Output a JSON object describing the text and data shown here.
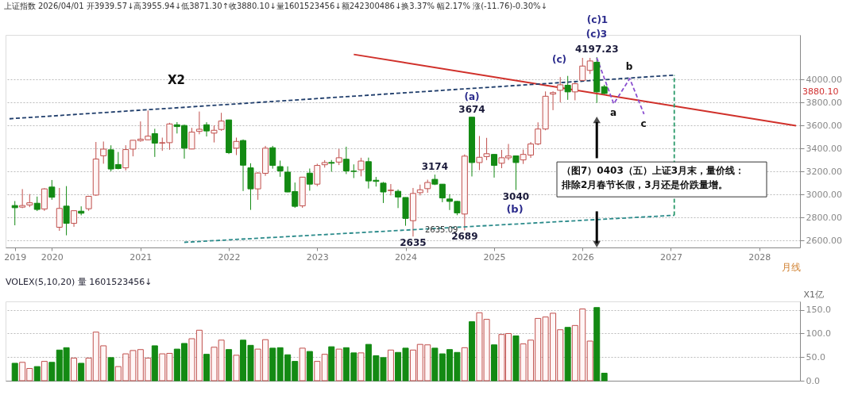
{
  "chart_data": [
    {
      "type": "candlestick",
      "title": "上证指数 2026/04/01 开3939.57↓高3955.94↓低3871.30↑收3880.10↓量1601523456↓额242300486↓换3.37% 幅2.17% 涨(-11.76)-0.30%↓",
      "xlabel": "月线",
      "x": [
        "2019-08",
        "2019-09",
        "2019-10",
        "2019-11",
        "2019-12",
        "2020-01",
        "2020-02",
        "2020-03",
        "2020-04",
        "2020-05",
        "2020-06",
        "2020-07",
        "2020-08",
        "2020-09",
        "2020-10",
        "2020-11",
        "2020-12",
        "2021-01",
        "2021-02",
        "2021-03",
        "2021-04",
        "2021-05",
        "2021-06",
        "2021-07",
        "2021-08",
        "2021-09",
        "2021-10",
        "2021-11",
        "2021-12",
        "2022-01",
        "2022-02",
        "2022-03",
        "2022-04",
        "2022-05",
        "2022-06",
        "2022-07",
        "2022-08",
        "2022-09",
        "2022-10",
        "2022-11",
        "2022-12",
        "2023-01",
        "2023-02",
        "2023-03",
        "2023-04",
        "2023-05",
        "2023-06",
        "2023-07",
        "2023-08",
        "2023-09",
        "2023-10",
        "2023-11",
        "2023-12",
        "2024-01",
        "2024-02",
        "2024-03",
        "2024-04",
        "2024-05",
        "2024-06",
        "2024-07",
        "2024-08",
        "2024-09",
        "2024-10",
        "2024-11",
        "2024-12",
        "2025-01",
        "2025-02",
        "2025-03",
        "2025-04",
        "2025-05",
        "2025-06",
        "2025-07",
        "2025-08",
        "2025-09",
        "2025-10",
        "2025-11",
        "2025-12",
        "2026-01",
        "2026-02",
        "2026-03",
        "2026-04"
      ],
      "ohlc": [
        [
          2905,
          2944,
          2733,
          2886
        ],
        [
          2891,
          3048,
          2882,
          2905
        ],
        [
          2910,
          3005,
          2891,
          2929
        ],
        [
          2925,
          2983,
          2857,
          2871
        ],
        [
          2875,
          3056,
          2858,
          3050
        ],
        [
          3066,
          3127,
          2955,
          2977
        ],
        [
          2716,
          3058,
          2685,
          2880
        ],
        [
          2900,
          3074,
          2646,
          2750
        ],
        [
          2750,
          2862,
          2720,
          2860
        ],
        [
          2856,
          2898,
          2820,
          2838
        ],
        [
          2877,
          2990,
          2860,
          2985
        ],
        [
          2996,
          3458,
          2990,
          3310
        ],
        [
          3338,
          3462,
          3269,
          3396
        ],
        [
          3390,
          3429,
          3202,
          3223
        ],
        [
          3262,
          3371,
          3220,
          3227
        ],
        [
          3233,
          3430,
          3210,
          3392
        ],
        [
          3396,
          3474,
          3333,
          3473
        ],
        [
          3470,
          3637,
          3460,
          3483
        ],
        [
          3477,
          3732,
          3474,
          3509
        ],
        [
          3531,
          3573,
          3328,
          3448
        ],
        [
          3448,
          3496,
          3381,
          3452
        ],
        [
          3452,
          3625,
          3390,
          3615
        ],
        [
          3608,
          3631,
          3532,
          3592
        ],
        [
          3602,
          3609,
          3313,
          3404
        ],
        [
          3397,
          3581,
          3395,
          3544
        ],
        [
          3550,
          3723,
          3525,
          3569
        ],
        [
          3608,
          3630,
          3506,
          3554
        ],
        [
          3535,
          3602,
          3454,
          3560
        ],
        [
          3567,
          3712,
          3555,
          3640
        ],
        [
          3650,
          3652,
          3353,
          3365
        ],
        [
          3404,
          3496,
          3344,
          3463
        ],
        [
          3471,
          3480,
          3031,
          3256
        ],
        [
          3233,
          3273,
          2867,
          3050
        ],
        [
          3050,
          3194,
          2955,
          3188
        ],
        [
          3185,
          3424,
          3163,
          3404
        ],
        [
          3408,
          3424,
          3226,
          3254
        ],
        [
          3244,
          3296,
          3155,
          3206
        ],
        [
          3196,
          3246,
          3021,
          3023
        ],
        [
          3027,
          3105,
          2885,
          2898
        ],
        [
          2902,
          3154,
          2885,
          3152
        ],
        [
          3187,
          3227,
          3034,
          3091
        ],
        [
          3091,
          3269,
          3073,
          3254
        ],
        [
          3260,
          3300,
          3235,
          3279
        ],
        [
          3280,
          3301,
          3199,
          3273
        ],
        [
          3283,
          3398,
          3257,
          3321
        ],
        [
          3308,
          3417,
          3179,
          3206
        ],
        [
          3205,
          3263,
          3144,
          3202
        ],
        [
          3216,
          3321,
          3159,
          3292
        ],
        [
          3287,
          3322,
          3053,
          3119
        ],
        [
          3125,
          3154,
          3070,
          3115
        ],
        [
          3100,
          3110,
          2927,
          3023
        ],
        [
          3035,
          3092,
          2993,
          3039
        ],
        [
          3029,
          3045,
          2883,
          2979
        ],
        [
          2975,
          2976,
          2729,
          2793
        ],
        [
          2773,
          3058,
          2635.09,
          3010
        ],
        [
          3017,
          3087,
          2993,
          3042
        ],
        [
          3052,
          3130,
          3016,
          3106
        ],
        [
          3133,
          3174,
          3083,
          3091
        ],
        [
          3091,
          3092,
          2934,
          2971
        ],
        [
          2962,
          3004,
          2866,
          2941
        ],
        [
          2941,
          2945,
          2821,
          2841
        ],
        [
          2831,
          3350,
          2689,
          3335
        ],
        [
          3674,
          3674,
          3158,
          3279
        ],
        [
          3279,
          3510,
          3213,
          3325
        ],
        [
          3331,
          3494,
          3300,
          3356
        ],
        [
          3350,
          3352,
          3148,
          3254
        ],
        [
          3273,
          3389,
          3230,
          3321
        ],
        [
          3320,
          3441,
          3300,
          3336
        ],
        [
          3337,
          3340,
          3040,
          3279
        ],
        [
          3302,
          3392,
          3267,
          3350
        ],
        [
          3344,
          3458,
          3320,
          3441
        ],
        [
          3441,
          3629,
          3430,
          3571
        ],
        [
          3571,
          3898,
          3560,
          3856
        ],
        [
          3875,
          3899,
          3735,
          3888
        ],
        [
          3908,
          4023,
          3802,
          3956
        ],
        [
          3952,
          4033,
          3825,
          3894
        ],
        [
          3894,
          3990,
          3821,
          3965
        ],
        [
          3994,
          4190,
          3990,
          4119
        ],
        [
          4081,
          4190,
          4050,
          4163
        ],
        [
          4152,
          4197.23,
          3798,
          3894
        ],
        [
          3939.57,
          3955.94,
          3871.3,
          3880.1
        ]
      ],
      "colors": [
        "#138a13",
        "#c0504d",
        "#c0504d",
        "#138a13",
        "#c0504d",
        "#138a13",
        "#c0504d",
        "#138a13",
        "#c0504d",
        "#138a13",
        "#c0504d",
        "#c0504d",
        "#c0504d",
        "#138a13",
        "#138a13",
        "#c0504d",
        "#c0504d",
        "#c0504d",
        "#c0504d",
        "#138a13",
        "#c0504d",
        "#c0504d",
        "#138a13",
        "#138a13",
        "#c0504d",
        "#c0504d",
        "#138a13",
        "#c0504d",
        "#c0504d",
        "#138a13",
        "#c0504d",
        "#138a13",
        "#138a13",
        "#c0504d",
        "#c0504d",
        "#138a13",
        "#138a13",
        "#138a13",
        "#138a13",
        "#c0504d",
        "#138a13",
        "#c0504d",
        "#c0504d",
        "#138a13",
        "#c0504d",
        "#138a13",
        "#138a13",
        "#c0504d",
        "#138a13",
        "#138a13",
        "#138a13",
        "#c0504d",
        "#138a13",
        "#138a13",
        "#c0504d",
        "#c0504d",
        "#c0504d",
        "#138a13",
        "#138a13",
        "#138a13",
        "#138a13",
        "#c0504d",
        "#138a13",
        "#c0504d",
        "#c0504d",
        "#138a13",
        "#c0504d",
        "#c0504d",
        "#138a13",
        "#c0504d",
        "#c0504d",
        "#c0504d",
        "#c0504d",
        "#c0504d",
        "#c0504d",
        "#138a13",
        "#c0504d",
        "#c0504d",
        "#c0504d",
        "#138a13",
        "#138a13"
      ],
      "series": [
        {
          "type": "line",
          "color": "#d0302a",
          "line_style": "solid",
          "x": [
            "2023-06",
            "2028-06"
          ],
          "values": [
            4220,
            3600
          ]
        },
        {
          "type": "line",
          "color": "#1f3d6b",
          "line_style": "dashed",
          "x": [
            "2019-07-10",
            "2027-01-15"
          ],
          "values": [
            3660,
            4040
          ]
        },
        {
          "type": "line",
          "color": "#2a8a8a",
          "line_style": "dashed",
          "x": [
            "2021-07",
            "2027-01-15"
          ],
          "values": [
            2585,
            2820
          ]
        },
        {
          "type": "line",
          "color": "#2a9a6a",
          "line_style": "dashed",
          "x": [
            "2027-01-15",
            "2027-01-15"
          ],
          "values": [
            2820,
            4040
          ]
        },
        {
          "type": "line",
          "color": "#8a4fd0",
          "line_style": "dashed",
          "x": [
            "2026-03",
            "2026-05-10",
            "2026-07-15",
            "2026-09-12"
          ],
          "values": [
            4190,
            3790,
            4010,
            3700
          ]
        }
      ],
      "xlim": [
        "2019-07-10",
        "2028-06"
      ],
      "xticks": [
        {
          "value": "2019-08",
          "label": "2019"
        },
        {
          "value": "2020-01",
          "label": "2020"
        },
        {
          "value": "2021-01",
          "label": "2021"
        },
        {
          "value": "2022-01",
          "label": "2022"
        },
        {
          "value": "2023-01",
          "label": "2023"
        },
        {
          "value": "2024-01",
          "label": "2024"
        },
        {
          "value": "2025-01",
          "label": "2025"
        },
        {
          "value": "2026-01",
          "label": "2026"
        },
        {
          "value": "2027-01",
          "label": "2027"
        },
        {
          "value": "2028-01",
          "label": "2028"
        }
      ],
      "ylim": [
        2540,
        4390
      ],
      "yticks": [
        {
          "value": 2600,
          "label": "2600.00"
        },
        {
          "value": 2800,
          "label": "2800.00"
        },
        {
          "value": 3000,
          "label": "3000.00"
        },
        {
          "value": 3200,
          "label": "3200.00"
        },
        {
          "value": 3400,
          "label": "3400.00"
        },
        {
          "value": 3600,
          "label": "3600.00"
        },
        {
          "value": 3800,
          "label": "3800.00"
        },
        {
          "value": 4000,
          "label": "4000.00"
        }
      ],
      "grid": "y",
      "annotations": [
        "X2",
        "（图7）0403（五）上证3月末，量价线：",
        "排除2月春节长假，3月还是价跌量增。",
        "(a)",
        "2635.09",
        "(b)",
        "(c)",
        "(c)1",
        "(c)3",
        "a",
        "b",
        "c",
        "3880.10",
        {
          "text": "3674",
          "x": "2024-10",
          "y": 3674
        },
        {
          "text": "3174",
          "x": "2024-05",
          "y": 3174
        },
        {
          "text": "2635",
          "x": "2024-02",
          "y": 2635.09
        },
        {
          "text": "2689",
          "x": "2024-09",
          "y": 2689
        },
        {
          "text": "3040",
          "x": "2025-04",
          "y": 3040
        },
        {
          "text": "4197.23",
          "x": "2026-03",
          "y": 4197.23
        }
      ]
    },
    {
      "type": "bar",
      "title": "VOLEX(5,10,20)  量 1601523456↓",
      "ylabel": "X1亿",
      "tick_labels": "y",
      "grid": "y",
      "x": [
        "2019-08",
        "2019-09",
        "2019-10",
        "2019-11",
        "2019-12",
        "2020-01",
        "2020-02",
        "2020-03",
        "2020-04",
        "2020-05",
        "2020-06",
        "2020-07",
        "2020-08",
        "2020-09",
        "2020-10",
        "2020-11",
        "2020-12",
        "2021-01",
        "2021-02",
        "2021-03",
        "2021-04",
        "2021-05",
        "2021-06",
        "2021-07",
        "2021-08",
        "2021-09",
        "2021-10",
        "2021-11",
        "2021-12",
        "2022-01",
        "2022-02",
        "2022-03",
        "2022-04",
        "2022-05",
        "2022-06",
        "2022-07",
        "2022-08",
        "2022-09",
        "2022-10",
        "2022-11",
        "2022-12",
        "2023-01",
        "2023-02",
        "2023-03",
        "2023-04",
        "2023-05",
        "2023-06",
        "2023-07",
        "2023-08",
        "2023-09",
        "2023-10",
        "2023-11",
        "2023-12",
        "2024-01",
        "2024-02",
        "2024-03",
        "2024-04",
        "2024-05",
        "2024-06",
        "2024-07",
        "2024-08",
        "2024-09",
        "2024-10",
        "2024-11",
        "2024-12",
        "2025-01",
        "2025-02",
        "2025-03",
        "2025-04",
        "2025-05",
        "2025-06",
        "2025-07",
        "2025-08",
        "2025-09",
        "2025-10",
        "2025-11",
        "2025-12",
        "2026-01",
        "2026-02",
        "2026-03",
        "2026-04"
      ],
      "series": [
        {
          "color": "#c0504d",
          "values": [
            null,
            39,
            26,
            null,
            41,
            null,
            null,
            null,
            48,
            null,
            48,
            103,
            74,
            null,
            30,
            57,
            64,
            66,
            48,
            null,
            57,
            58,
            null,
            null,
            89,
            107,
            null,
            71,
            86,
            null,
            54,
            null,
            null,
            67,
            87,
            null,
            null,
            null,
            null,
            69,
            null,
            41,
            56,
            null,
            67,
            null,
            null,
            59,
            null,
            null,
            null,
            65,
            null,
            null,
            65,
            77,
            76,
            null,
            null,
            null,
            null,
            70,
            null,
            144,
            130,
            null,
            98,
            100,
            null,
            78,
            86,
            132,
            135,
            143,
            108,
            null,
            117,
            152,
            84,
            null,
            null
          ]
        },
        {
          "color": "#138a13",
          "values": [
            37,
            null,
            null,
            30,
            null,
            39,
            65,
            70,
            null,
            37,
            null,
            null,
            null,
            49,
            null,
            null,
            null,
            null,
            null,
            74,
            null,
            null,
            67,
            79,
            null,
            null,
            56,
            null,
            null,
            66,
            null,
            86,
            75,
            null,
            null,
            69,
            70,
            55,
            41,
            null,
            62,
            null,
            null,
            72,
            null,
            70,
            59,
            null,
            77,
            53,
            49,
            null,
            60,
            69,
            null,
            null,
            null,
            69,
            57,
            66,
            60,
            null,
            125,
            null,
            null,
            76,
            null,
            null,
            95,
            null,
            null,
            null,
            null,
            null,
            null,
            113,
            null,
            null,
            null,
            155,
            16
          ]
        }
      ],
      "xlim": [
        "2019-07-10",
        "2028-06"
      ],
      "ylim": [
        0,
        168
      ],
      "yticks": [
        {
          "value": 0,
          "label": "0.0"
        },
        {
          "value": 50,
          "label": "50.0"
        },
        {
          "value": 100,
          "label": "100.0"
        },
        {
          "value": 150,
          "label": "150.0"
        }
      ]
    }
  ]
}
